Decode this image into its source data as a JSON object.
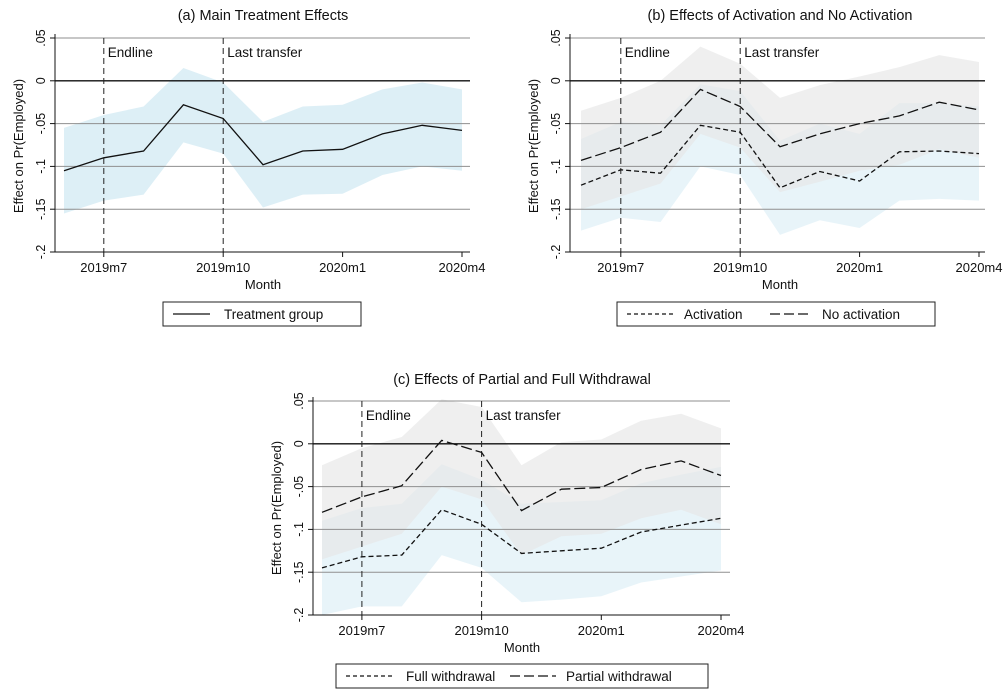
{
  "chart_data": [
    {
      "type": "line",
      "title": "(a) Main Treatment Effects",
      "xlabel": "Month",
      "ylabel": "Effect on Pr(Employed)",
      "ylim": [
        -0.2,
        0.05
      ],
      "y_ticks": [
        0.05,
        0,
        -0.05,
        -0.1,
        -0.15,
        -0.2
      ],
      "y_tick_labels": [
        ".05",
        "0",
        "-.05",
        "-.1",
        "-.15",
        "-.2"
      ],
      "x_ticks": [
        "2019m7",
        "2019m10",
        "2020m1",
        "2020m4"
      ],
      "x_months": [
        "2019m6",
        "2019m7",
        "2019m8",
        "2019m9",
        "2019m10",
        "2019m11",
        "2019m12",
        "2020m1",
        "2020m2",
        "2020m3",
        "2020m4"
      ],
      "grid": true,
      "annotations": [
        {
          "x": "2019m7",
          "label": "Endline"
        },
        {
          "x": "2019m10",
          "label": "Last transfer"
        }
      ],
      "legend_position": "bottom",
      "series": [
        {
          "name": "Treatment group",
          "style": "solid",
          "values": [
            -0.105,
            -0.09,
            -0.082,
            -0.028,
            -0.044,
            -0.098,
            -0.082,
            -0.08,
            -0.062,
            -0.052,
            -0.058
          ],
          "ci_lower": [
            -0.155,
            -0.14,
            -0.133,
            -0.072,
            -0.085,
            -0.148,
            -0.133,
            -0.132,
            -0.11,
            -0.1,
            -0.105
          ],
          "ci_upper": [
            -0.055,
            -0.04,
            -0.03,
            0.015,
            -0.002,
            -0.048,
            -0.03,
            -0.028,
            -0.01,
            -0.002,
            -0.01
          ],
          "band_color": "#dbeef6"
        }
      ]
    },
    {
      "type": "line",
      "title": "(b) Effects of Activation and No Activation",
      "xlabel": "Month",
      "ylabel": "Effect on Pr(Employed)",
      "ylim": [
        -0.2,
        0.05
      ],
      "y_ticks": [
        0.05,
        0,
        -0.05,
        -0.1,
        -0.15,
        -0.2
      ],
      "y_tick_labels": [
        ".05",
        "0",
        "-.05",
        "-.1",
        "-.15",
        "-.2"
      ],
      "x_ticks": [
        "2019m7",
        "2019m10",
        "2020m1",
        "2020m4"
      ],
      "x_months": [
        "2019m6",
        "2019m7",
        "2019m8",
        "2019m9",
        "2019m10",
        "2019m11",
        "2019m12",
        "2020m1",
        "2020m2",
        "2020m3",
        "2020m4"
      ],
      "grid": true,
      "annotations": [
        {
          "x": "2019m7",
          "label": "Endline"
        },
        {
          "x": "2019m10",
          "label": "Last transfer"
        }
      ],
      "legend_position": "bottom",
      "series": [
        {
          "name": "Activation",
          "style": "short-dash",
          "values": [
            -0.122,
            -0.104,
            -0.108,
            -0.052,
            -0.06,
            -0.125,
            -0.106,
            -0.117,
            -0.083,
            -0.082,
            -0.085
          ],
          "ci_lower": [
            -0.175,
            -0.16,
            -0.165,
            -0.1,
            -0.11,
            -0.18,
            -0.163,
            -0.172,
            -0.14,
            -0.138,
            -0.14
          ],
          "ci_upper": [
            -0.068,
            -0.048,
            -0.052,
            -0.004,
            -0.012,
            -0.07,
            -0.05,
            -0.062,
            -0.026,
            -0.026,
            -0.03
          ],
          "band_color": "#dbeef6"
        },
        {
          "name": "No activation",
          "style": "long-dash",
          "values": [
            -0.093,
            -0.078,
            -0.06,
            -0.01,
            -0.03,
            -0.077,
            -0.062,
            -0.05,
            -0.041,
            -0.025,
            -0.034
          ],
          "ci_lower": [
            -0.15,
            -0.135,
            -0.12,
            -0.062,
            -0.078,
            -0.13,
            -0.118,
            -0.105,
            -0.098,
            -0.08,
            -0.09
          ],
          "ci_upper": [
            -0.035,
            -0.02,
            0,
            0.04,
            0.02,
            -0.02,
            -0.005,
            0.005,
            0.016,
            0.03,
            0.022
          ],
          "band_color": "#e6e6e6"
        }
      ]
    },
    {
      "type": "line",
      "title": "(c) Effects of Partial and Full Withdrawal",
      "xlabel": "Month",
      "ylabel": "Effect on Pr(Employed)",
      "ylim": [
        -0.2,
        0.05
      ],
      "y_ticks": [
        0.05,
        0,
        -0.05,
        -0.1,
        -0.15,
        -0.2
      ],
      "y_tick_labels": [
        ".05",
        "0",
        "-.05",
        "-.1",
        "-.15",
        "-.2"
      ],
      "x_ticks": [
        "2019m7",
        "2019m10",
        "2020m1",
        "2020m4"
      ],
      "x_months": [
        "2019m6",
        "2019m7",
        "2019m8",
        "2019m9",
        "2019m10",
        "2019m11",
        "2019m12",
        "2020m1",
        "2020m2",
        "2020m3",
        "2020m4"
      ],
      "grid": true,
      "annotations": [
        {
          "x": "2019m7",
          "label": "Endline"
        },
        {
          "x": "2019m10",
          "label": "Last transfer"
        }
      ],
      "legend_position": "bottom",
      "series": [
        {
          "name": "Full withdrawal",
          "style": "short-dash",
          "values": [
            -0.145,
            -0.132,
            -0.13,
            -0.077,
            -0.094,
            -0.128,
            -0.125,
            -0.122,
            -0.103,
            -0.095,
            -0.087
          ],
          "ci_lower": [
            -0.2,
            -0.19,
            -0.19,
            -0.13,
            -0.145,
            -0.185,
            -0.182,
            -0.178,
            -0.162,
            -0.155,
            -0.148
          ],
          "ci_upper": [
            -0.09,
            -0.075,
            -0.07,
            -0.024,
            -0.042,
            -0.07,
            -0.068,
            -0.066,
            -0.046,
            -0.036,
            -0.027
          ],
          "band_color": "#dbeef6"
        },
        {
          "name": "Partial withdrawal",
          "style": "long-dash",
          "values": [
            -0.08,
            -0.062,
            -0.049,
            0.004,
            -0.01,
            -0.078,
            -0.053,
            -0.051,
            -0.03,
            -0.02,
            -0.037
          ],
          "ci_lower": [
            -0.135,
            -0.12,
            -0.105,
            -0.05,
            -0.065,
            -0.13,
            -0.108,
            -0.105,
            -0.087,
            -0.077,
            -0.094
          ],
          "ci_upper": [
            -0.025,
            -0.005,
            0.008,
            0.052,
            0.043,
            -0.025,
            0.002,
            0.005,
            0.027,
            0.035,
            0.018
          ],
          "band_color": "#e6e6e6"
        }
      ]
    }
  ]
}
